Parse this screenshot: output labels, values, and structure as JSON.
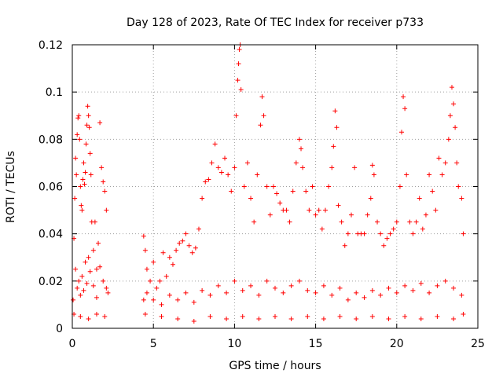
{
  "chart_data": {
    "type": "scatter",
    "title": "Day 128 of 2023, Rate Of TEC Index for receiver p733",
    "xlabel": "GPS time / hours",
    "ylabel": "ROTI / TECUs",
    "xlim": [
      0,
      25
    ],
    "ylim": [
      0,
      0.12
    ],
    "x_ticks": [
      0,
      5,
      10,
      15,
      20,
      25
    ],
    "x_tick_labels": [
      "0",
      "5",
      "10",
      "15",
      "20",
      "25"
    ],
    "y_ticks": [
      0,
      0.02,
      0.04,
      0.06,
      0.08,
      0.1,
      0.12
    ],
    "y_tick_labels": [
      "0",
      "0.02",
      "0.04",
      "0.06",
      "0.08",
      "0.1",
      "0.12"
    ],
    "grid": true,
    "marker": "plus",
    "color": "#ff0000",
    "data_gaps_hours": [
      [
        2.3,
        4.2
      ]
    ],
    "series": [
      {
        "points": [
          [
            0.05,
            0.012
          ],
          [
            0.1,
            0.038
          ],
          [
            0.15,
            0.055
          ],
          [
            0.2,
            0.072
          ],
          [
            0.25,
            0.065
          ],
          [
            0.3,
            0.082
          ],
          [
            0.35,
            0.089
          ],
          [
            0.4,
            0.09
          ],
          [
            0.45,
            0.08
          ],
          [
            0.5,
            0.06
          ],
          [
            0.55,
            0.052
          ],
          [
            0.6,
            0.05
          ],
          [
            0.65,
            0.063
          ],
          [
            0.7,
            0.07
          ],
          [
            0.75,
            0.061
          ],
          [
            0.8,
            0.066
          ],
          [
            0.85,
            0.078
          ],
          [
            0.9,
            0.086
          ],
          [
            0.95,
            0.094
          ],
          [
            1.0,
            0.09
          ],
          [
            1.05,
            0.085
          ],
          [
            1.1,
            0.074
          ],
          [
            1.15,
            0.065
          ],
          [
            1.2,
            0.045
          ],
          [
            1.3,
            0.033
          ],
          [
            1.4,
            0.045
          ],
          [
            1.5,
            0.025
          ],
          [
            1.6,
            0.036
          ],
          [
            1.7,
            0.087
          ],
          [
            1.8,
            0.068
          ],
          [
            1.9,
            0.062
          ],
          [
            2.0,
            0.058
          ],
          [
            2.1,
            0.05
          ],
          [
            2.2,
            0.015
          ],
          [
            4.4,
            0.039
          ],
          [
            4.5,
            0.033
          ],
          [
            4.6,
            0.025
          ],
          [
            4.8,
            0.02
          ],
          [
            5.0,
            0.028
          ],
          [
            5.2,
            0.017
          ],
          [
            5.4,
            0.02
          ],
          [
            5.6,
            0.032
          ],
          [
            5.8,
            0.022
          ],
          [
            6.0,
            0.03
          ],
          [
            6.2,
            0.027
          ],
          [
            6.4,
            0.033
          ],
          [
            6.6,
            0.036
          ],
          [
            6.8,
            0.037
          ],
          [
            7.0,
            0.04
          ],
          [
            7.2,
            0.035
          ],
          [
            7.4,
            0.032
          ],
          [
            7.6,
            0.034
          ],
          [
            7.8,
            0.042
          ],
          [
            8.0,
            0.055
          ],
          [
            8.2,
            0.062
          ],
          [
            8.4,
            0.063
          ],
          [
            8.6,
            0.07
          ],
          [
            8.8,
            0.078
          ],
          [
            9.0,
            0.068
          ],
          [
            9.2,
            0.066
          ],
          [
            9.4,
            0.072
          ],
          [
            9.6,
            0.065
          ],
          [
            9.8,
            0.058
          ],
          [
            10.0,
            0.068
          ],
          [
            10.1,
            0.09
          ],
          [
            10.2,
            0.105
          ],
          [
            10.25,
            0.112
          ],
          [
            10.3,
            0.118
          ],
          [
            10.35,
            0.12
          ],
          [
            10.4,
            0.101
          ],
          [
            10.6,
            0.06
          ],
          [
            10.8,
            0.07
          ],
          [
            11.0,
            0.055
          ],
          [
            11.2,
            0.045
          ],
          [
            11.4,
            0.065
          ],
          [
            11.6,
            0.086
          ],
          [
            11.7,
            0.098
          ],
          [
            11.8,
            0.09
          ],
          [
            12.0,
            0.06
          ],
          [
            12.2,
            0.048
          ],
          [
            12.4,
            0.06
          ],
          [
            12.6,
            0.057
          ],
          [
            12.8,
            0.053
          ],
          [
            13.0,
            0.05
          ],
          [
            13.2,
            0.05
          ],
          [
            13.4,
            0.045
          ],
          [
            13.6,
            0.058
          ],
          [
            13.8,
            0.07
          ],
          [
            14.0,
            0.08
          ],
          [
            14.1,
            0.076
          ],
          [
            14.2,
            0.068
          ],
          [
            14.4,
            0.058
          ],
          [
            14.6,
            0.05
          ],
          [
            14.8,
            0.06
          ],
          [
            15.0,
            0.048
          ],
          [
            15.2,
            0.05
          ],
          [
            15.4,
            0.042
          ],
          [
            15.6,
            0.05
          ],
          [
            15.8,
            0.06
          ],
          [
            16.0,
            0.068
          ],
          [
            16.1,
            0.077
          ],
          [
            16.2,
            0.092
          ],
          [
            16.3,
            0.085
          ],
          [
            16.4,
            0.052
          ],
          [
            16.6,
            0.045
          ],
          [
            16.8,
            0.035
          ],
          [
            17.0,
            0.04
          ],
          [
            17.2,
            0.048
          ],
          [
            17.4,
            0.068
          ],
          [
            17.6,
            0.04
          ],
          [
            17.8,
            0.04
          ],
          [
            18.0,
            0.04
          ],
          [
            18.2,
            0.048
          ],
          [
            18.4,
            0.055
          ],
          [
            18.5,
            0.069
          ],
          [
            18.6,
            0.065
          ],
          [
            18.8,
            0.045
          ],
          [
            19.0,
            0.04
          ],
          [
            19.2,
            0.035
          ],
          [
            19.4,
            0.038
          ],
          [
            19.6,
            0.04
          ],
          [
            19.8,
            0.042
          ],
          [
            20.0,
            0.045
          ],
          [
            20.2,
            0.06
          ],
          [
            20.3,
            0.083
          ],
          [
            20.4,
            0.098
          ],
          [
            20.5,
            0.093
          ],
          [
            20.6,
            0.065
          ],
          [
            20.8,
            0.045
          ],
          [
            21.0,
            0.04
          ],
          [
            21.2,
            0.045
          ],
          [
            21.4,
            0.055
          ],
          [
            21.6,
            0.042
          ],
          [
            21.8,
            0.048
          ],
          [
            22.0,
            0.065
          ],
          [
            22.2,
            0.058
          ],
          [
            22.4,
            0.05
          ],
          [
            22.6,
            0.072
          ],
          [
            22.8,
            0.065
          ],
          [
            23.0,
            0.07
          ],
          [
            23.2,
            0.08
          ],
          [
            23.3,
            0.09
          ],
          [
            23.4,
            0.102
          ],
          [
            23.5,
            0.095
          ],
          [
            23.6,
            0.085
          ],
          [
            23.7,
            0.07
          ],
          [
            23.8,
            0.06
          ],
          [
            24.0,
            0.055
          ],
          [
            24.1,
            0.04
          ],
          [
            0.2,
            0.025
          ],
          [
            0.3,
            0.017
          ],
          [
            0.4,
            0.02
          ],
          [
            0.5,
            0.014
          ],
          [
            0.6,
            0.022
          ],
          [
            0.7,
            0.016
          ],
          [
            0.8,
            0.028
          ],
          [
            0.9,
            0.019
          ],
          [
            1.0,
            0.03
          ],
          [
            1.1,
            0.024
          ],
          [
            1.3,
            0.018
          ],
          [
            1.5,
            0.013
          ],
          [
            1.7,
            0.026
          ],
          [
            1.9,
            0.02
          ],
          [
            2.1,
            0.017
          ],
          [
            4.4,
            0.012
          ],
          [
            4.6,
            0.015
          ],
          [
            5.0,
            0.012
          ],
          [
            5.5,
            0.01
          ],
          [
            6.0,
            0.014
          ],
          [
            6.5,
            0.012
          ],
          [
            7.0,
            0.015
          ],
          [
            7.5,
            0.011
          ],
          [
            8.0,
            0.016
          ],
          [
            8.5,
            0.014
          ],
          [
            9.0,
            0.018
          ],
          [
            9.5,
            0.015
          ],
          [
            10.0,
            0.02
          ],
          [
            10.5,
            0.016
          ],
          [
            11.0,
            0.018
          ],
          [
            11.5,
            0.014
          ],
          [
            12.0,
            0.02
          ],
          [
            12.5,
            0.017
          ],
          [
            13.0,
            0.015
          ],
          [
            13.5,
            0.018
          ],
          [
            14.0,
            0.02
          ],
          [
            14.5,
            0.016
          ],
          [
            15.0,
            0.015
          ],
          [
            15.5,
            0.018
          ],
          [
            16.0,
            0.014
          ],
          [
            16.5,
            0.017
          ],
          [
            17.0,
            0.012
          ],
          [
            17.5,
            0.015
          ],
          [
            18.0,
            0.013
          ],
          [
            18.5,
            0.016
          ],
          [
            19.0,
            0.014
          ],
          [
            19.5,
            0.017
          ],
          [
            20.0,
            0.015
          ],
          [
            20.5,
            0.018
          ],
          [
            21.0,
            0.016
          ],
          [
            21.5,
            0.019
          ],
          [
            22.0,
            0.015
          ],
          [
            22.5,
            0.018
          ],
          [
            23.0,
            0.02
          ],
          [
            23.5,
            0.017
          ],
          [
            24.0,
            0.014
          ],
          [
            0.1,
            0.006
          ],
          [
            0.5,
            0.005
          ],
          [
            1.0,
            0.004
          ],
          [
            1.5,
            0.006
          ],
          [
            2.0,
            0.005
          ],
          [
            4.5,
            0.006
          ],
          [
            5.5,
            0.005
          ],
          [
            6.5,
            0.004
          ],
          [
            7.5,
            0.003
          ],
          [
            8.5,
            0.005
          ],
          [
            9.5,
            0.004
          ],
          [
            10.5,
            0.005
          ],
          [
            11.5,
            0.004
          ],
          [
            12.5,
            0.005
          ],
          [
            13.5,
            0.004
          ],
          [
            14.5,
            0.005
          ],
          [
            15.5,
            0.004
          ],
          [
            16.5,
            0.005
          ],
          [
            17.5,
            0.004
          ],
          [
            18.5,
            0.005
          ],
          [
            19.5,
            0.004
          ],
          [
            20.5,
            0.005
          ],
          [
            21.5,
            0.004
          ],
          [
            22.5,
            0.005
          ],
          [
            23.5,
            0.004
          ],
          [
            24.1,
            0.006
          ]
        ]
      }
    ]
  }
}
